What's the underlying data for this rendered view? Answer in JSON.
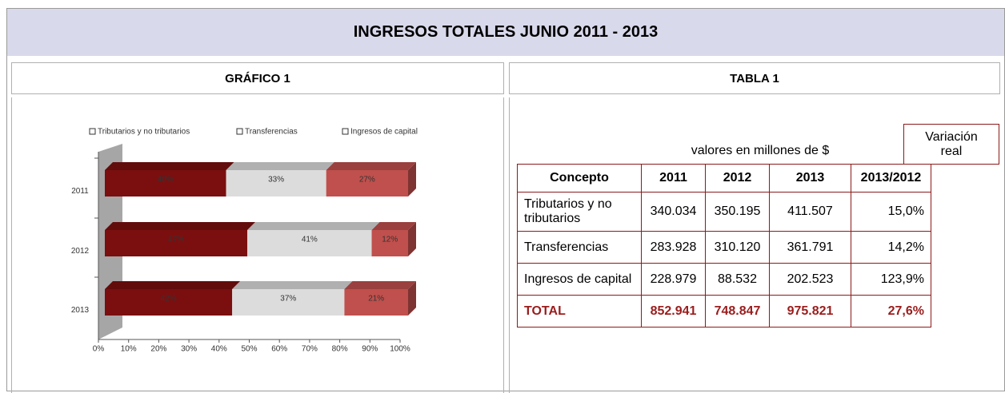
{
  "header": {
    "title": "INGRESOS TOTALES JUNIO  2011 - 2013"
  },
  "panels": {
    "left": "GRÁFICO 1",
    "right": "TABLA 1"
  },
  "chart_data": {
    "type": "bar",
    "orientation": "horizontal",
    "stacked": true,
    "categories": [
      "2011",
      "2012",
      "2013"
    ],
    "series": [
      {
        "name": "Tributarios y no tributarios",
        "color": "#7b0f0f",
        "values": [
          40,
          47,
          42
        ],
        "value_labels": [
          "40%",
          "47%",
          "42%"
        ]
      },
      {
        "name": "Transferencias",
        "color": "#dcdcdc",
        "values": [
          33,
          41,
          37
        ],
        "value_labels": [
          "33%",
          "41%",
          "37%"
        ]
      },
      {
        "name": "Ingresos de capital",
        "color": "#c0504d",
        "values": [
          27,
          12,
          21
        ],
        "value_labels": [
          "27%",
          "12%",
          "21%"
        ]
      }
    ],
    "xlim": [
      0,
      100
    ],
    "xticks": [
      {
        "value": 0,
        "label": "0%"
      },
      {
        "value": 10,
        "label": "10%"
      },
      {
        "value": 20,
        "label": "20%"
      },
      {
        "value": 30,
        "label": "30%"
      },
      {
        "value": 40,
        "label": "40%"
      },
      {
        "value": 50,
        "label": "50%"
      },
      {
        "value": 60,
        "label": "60%"
      },
      {
        "value": 70,
        "label": "70%"
      },
      {
        "value": 80,
        "label": "80%"
      },
      {
        "value": 90,
        "label": "90%"
      },
      {
        "value": 100,
        "label": "100%"
      }
    ],
    "legend": "top"
  },
  "table": {
    "note": "valores en millones de $",
    "variation_header": "Variación real",
    "columns": [
      "Concepto",
      "2011",
      "2012",
      "2013",
      "2013/2012"
    ],
    "rows": [
      [
        "Tributarios y no tributarios",
        "340.034",
        "350.195",
        "411.507",
        "15,0%"
      ],
      [
        "Transferencias",
        "283.928",
        "310.120",
        "361.791",
        "14,2%"
      ],
      [
        "Ingresos de capital",
        "228.979",
        "88.532",
        "202.523",
        "123,9%"
      ],
      [
        "TOTAL",
        "852.941",
        "748.847",
        "975.821",
        "27,6%"
      ]
    ]
  }
}
